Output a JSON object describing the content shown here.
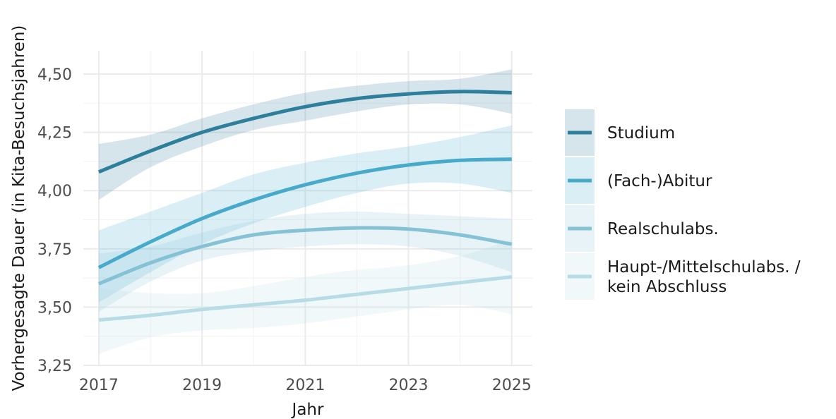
{
  "chart_data": {
    "type": "line",
    "title": "",
    "xlabel": "Jahr",
    "ylabel": "Vorhergesagte Dauer (in Kita-Besuchsjahren)",
    "xlim": [
      2016.7,
      2025.4
    ],
    "ylim": [
      3.25,
      4.6
    ],
    "x_ticks": [
      2017,
      2019,
      2021,
      2023,
      2025
    ],
    "x_tick_labels": [
      "2017",
      "2019",
      "2021",
      "2023",
      "2025"
    ],
    "y_ticks": [
      3.25,
      3.5,
      3.75,
      4.0,
      4.25,
      4.5
    ],
    "y_tick_labels": [
      "3,25",
      "3,50",
      "3,75",
      "4,00",
      "4,25",
      "4,50"
    ],
    "grid": true,
    "legend_position": "right",
    "x": [
      2017,
      2018,
      2019,
      2020,
      2021,
      2022,
      2023,
      2024,
      2025
    ],
    "series": [
      {
        "name": "Studium",
        "color": "#2e7f9b",
        "values": [
          4.08,
          4.17,
          4.25,
          4.31,
          4.36,
          4.395,
          4.415,
          4.425,
          4.42
        ],
        "lower": [
          3.96,
          4.1,
          4.19,
          4.26,
          4.3,
          4.34,
          4.37,
          4.37,
          4.33
        ],
        "upper": [
          4.2,
          4.24,
          4.31,
          4.37,
          4.42,
          4.45,
          4.47,
          4.48,
          4.52
        ]
      },
      {
        "name": "(Fach-)Abitur",
        "color": "#47aacb",
        "values": [
          3.67,
          3.78,
          3.88,
          3.96,
          4.025,
          4.075,
          4.11,
          4.13,
          4.135
        ],
        "lower": [
          3.52,
          3.65,
          3.77,
          3.86,
          3.93,
          3.99,
          4.03,
          4.03,
          3.99
        ],
        "upper": [
          3.83,
          3.91,
          3.99,
          4.07,
          4.12,
          4.16,
          4.19,
          4.23,
          4.28
        ]
      },
      {
        "name": "Realschulabs.",
        "color": "#86c2d6",
        "values": [
          3.6,
          3.69,
          3.76,
          3.81,
          3.83,
          3.84,
          3.835,
          3.81,
          3.77
        ],
        "lower": [
          3.48,
          3.61,
          3.7,
          3.74,
          3.76,
          3.77,
          3.76,
          3.72,
          3.65
        ],
        "upper": [
          3.73,
          3.76,
          3.82,
          3.87,
          3.9,
          3.91,
          3.9,
          3.89,
          3.88
        ]
      },
      {
        "name": "Haupt-/Mittelschulabs. / kein Abschluss",
        "label_lines": [
          "Haupt-/Mittelschulabs. /",
          "kein Abschluss"
        ],
        "color": "#b7dce6",
        "values": [
          3.445,
          3.465,
          3.49,
          3.51,
          3.53,
          3.555,
          3.58,
          3.605,
          3.63
        ],
        "lower": [
          3.3,
          3.37,
          3.4,
          3.41,
          3.43,
          3.46,
          3.49,
          3.51,
          3.47
        ],
        "upper": [
          3.58,
          3.56,
          3.56,
          3.59,
          3.63,
          3.66,
          3.68,
          3.72,
          3.79
        ]
      }
    ]
  }
}
